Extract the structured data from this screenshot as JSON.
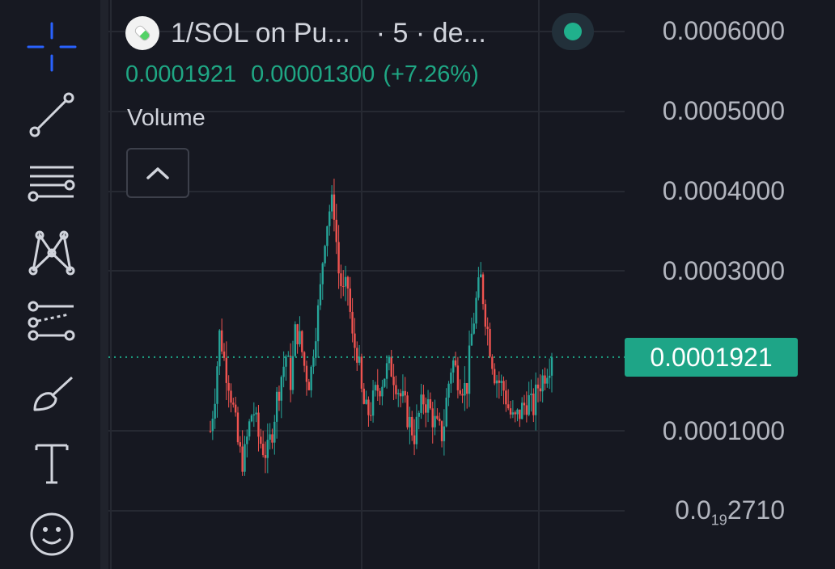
{
  "header": {
    "symbol": "1/SOL on Pu...",
    "interval": "· 5 · de...",
    "status_color": "#20b08c"
  },
  "quote": {
    "last": "0.0001921",
    "change": "0.00001300",
    "change_percent": "(+7.26%)",
    "color": "#1fa784"
  },
  "volume_label": "Volume",
  "toolbar": {
    "tools": [
      {
        "name": "crosshair",
        "icon": "crosshair-icon"
      },
      {
        "name": "trend-line",
        "icon": "trend-line-icon"
      },
      {
        "name": "fib-levels",
        "icon": "horizontal-lines-icon"
      },
      {
        "name": "patterns",
        "icon": "pattern-icon"
      },
      {
        "name": "prediction",
        "icon": "forecast-icon"
      },
      {
        "name": "brush",
        "icon": "brush-icon"
      },
      {
        "name": "text",
        "icon": "text-icon"
      },
      {
        "name": "emoji",
        "icon": "smiley-icon"
      }
    ]
  },
  "price_axis": {
    "labels": [
      "0.0006000",
      "0.0005000",
      "0.0004000",
      "0.0003000",
      "0.0001000"
    ],
    "last_label_prefix": "0.0",
    "last_label_sub": "19",
    "last_label_suffix": "2710",
    "current_price_tag": "0.0001921"
  },
  "chart_data": {
    "type": "candlestick",
    "ylim": [
      0.0,
      0.0006
    ],
    "grid": true,
    "up_color": "#26a69a",
    "down_color": "#ef5350",
    "last_price": 0.0001921,
    "price_path": [
      0.0001,
      0.00015,
      0.000225,
      0.000185,
      0.00016,
      0.00012,
      7.5e-05,
      6e-05,
      0.0001,
      0.00013,
      9.5e-05,
      8e-05,
      7e-05,
      0.0001,
      0.00014,
      0.00017,
      0.000195,
      0.00016,
      0.00023,
      0.00021,
      0.000175,
      0.00016,
      0.00022,
      0.00026,
      0.00034,
      0.000375,
      0.000385,
      0.0003,
      0.00027,
      0.00028,
      0.00021,
      0.0002,
      0.00014,
      0.00012,
      0.00013,
      0.00015,
      0.00016,
      0.000175,
      0.00018,
      0.000165,
      0.000145,
      0.00013,
      0.00011,
      9.5e-05,
      0.00012,
      0.00014,
      0.00013,
      0.000115,
      0.0001,
      9.5e-05,
      0.00015,
      0.00019,
      0.00017,
      0.00016,
      0.00015,
      0.000215,
      0.00026,
      0.00029,
      0.000245,
      0.000205,
      0.00017,
      0.00016,
      0.00015,
      0.000125,
      0.00011,
      0.00012,
      0.00013,
      0.00014,
      0.000125,
      0.000155,
      0.000165,
      0.00018,
      0.000192
    ]
  }
}
